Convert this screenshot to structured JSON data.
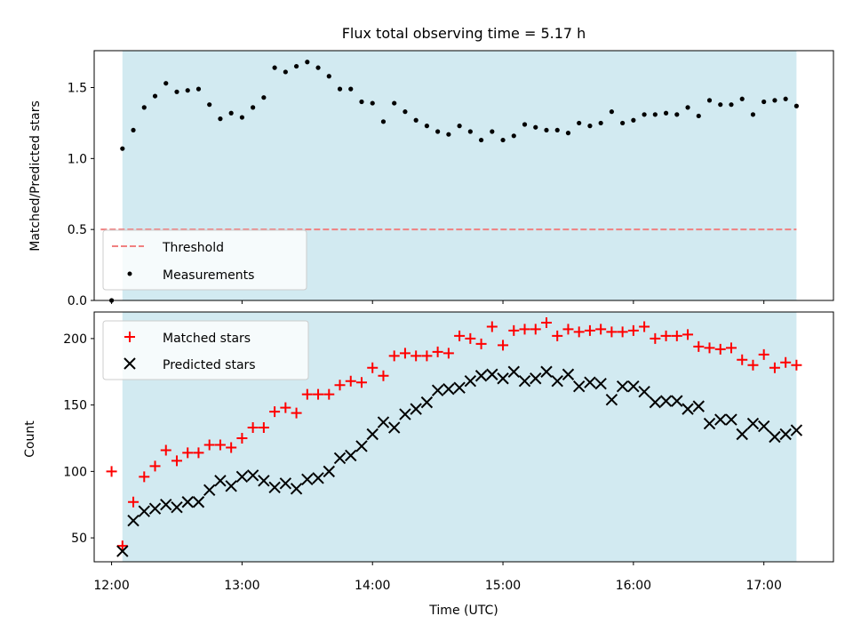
{
  "chart_data": [
    {
      "type": "scatter",
      "title": "Flux total observing time = 5.17 h",
      "ylabel": "Matched/Predicted stars",
      "xlabel": "",
      "xlim": [
        "11:52",
        "17:32"
      ],
      "ylim": [
        0,
        1.76
      ],
      "yticks": [
        0.0,
        0.5,
        1.0,
        1.5
      ],
      "ytick_labels": [
        "0.0",
        "0.5",
        "1.0",
        "1.5"
      ],
      "shaded_span": [
        "12:05",
        "17:15"
      ],
      "shade_color": "#add8e6",
      "threshold": {
        "label": "Threshold",
        "value": 0.5,
        "x_range": [
          "11:55",
          "17:15"
        ],
        "color": "#f08080",
        "style": "dashed"
      },
      "legend": {
        "position": "lower-left",
        "entries": [
          "Threshold",
          "Measurements"
        ]
      },
      "series": [
        {
          "name": "Measurements",
          "color": "#000000",
          "marker": "dot",
          "x": [
            "12:00",
            "12:05",
            "12:10",
            "12:15",
            "12:20",
            "12:25",
            "12:30",
            "12:35",
            "12:40",
            "12:45",
            "12:50",
            "12:55",
            "13:00",
            "13:05",
            "13:10",
            "13:15",
            "13:20",
            "13:25",
            "13:30",
            "13:35",
            "13:40",
            "13:45",
            "13:50",
            "13:55",
            "14:00",
            "14:05",
            "14:10",
            "14:15",
            "14:20",
            "14:25",
            "14:30",
            "14:35",
            "14:40",
            "14:45",
            "14:50",
            "14:55",
            "15:00",
            "15:05",
            "15:10",
            "15:15",
            "15:20",
            "15:25",
            "15:30",
            "15:35",
            "15:40",
            "15:45",
            "15:50",
            "15:55",
            "16:00",
            "16:05",
            "16:10",
            "16:15",
            "16:20",
            "16:25",
            "16:30",
            "16:35",
            "16:40",
            "16:45",
            "16:50",
            "16:55",
            "17:00",
            "17:05",
            "17:10",
            "17:15"
          ],
          "y": [
            0.0,
            1.07,
            1.2,
            1.36,
            1.44,
            1.53,
            1.47,
            1.48,
            1.49,
            1.38,
            1.28,
            1.32,
            1.29,
            1.36,
            1.43,
            1.64,
            1.61,
            1.65,
            1.68,
            1.64,
            1.58,
            1.49,
            1.49,
            1.4,
            1.39,
            1.26,
            1.39,
            1.33,
            1.27,
            1.23,
            1.19,
            1.17,
            1.23,
            1.19,
            1.13,
            1.19,
            1.13,
            1.16,
            1.24,
            1.22,
            1.2,
            1.2,
            1.18,
            1.25,
            1.23,
            1.25,
            1.33,
            1.25,
            1.27,
            1.31,
            1.31,
            1.32,
            1.31,
            1.36,
            1.3,
            1.41,
            1.38,
            1.38,
            1.42,
            1.31,
            1.4,
            1.41,
            1.42,
            1.37
          ]
        }
      ]
    },
    {
      "type": "scatter",
      "xlabel": "Time (UTC)",
      "ylabel": "Count",
      "xlim": [
        "11:52",
        "17:32"
      ],
      "ylim": [
        32,
        220
      ],
      "xticks": [
        "12:00",
        "13:00",
        "14:00",
        "15:00",
        "16:00",
        "17:00"
      ],
      "yticks": [
        50,
        100,
        150,
        200
      ],
      "shaded_span": [
        "12:05",
        "17:15"
      ],
      "shade_color": "#add8e6",
      "legend": {
        "position": "upper-left",
        "entries": [
          "Matched stars",
          "Predicted stars"
        ]
      },
      "series": [
        {
          "name": "Matched stars",
          "color": "#ff0000",
          "marker": "plus",
          "x": [
            "12:00",
            "12:05",
            "12:10",
            "12:15",
            "12:20",
            "12:25",
            "12:30",
            "12:35",
            "12:40",
            "12:45",
            "12:50",
            "12:55",
            "13:00",
            "13:05",
            "13:10",
            "13:15",
            "13:20",
            "13:25",
            "13:30",
            "13:35",
            "13:40",
            "13:45",
            "13:50",
            "13:55",
            "14:00",
            "14:05",
            "14:10",
            "14:15",
            "14:20",
            "14:25",
            "14:30",
            "14:35",
            "14:40",
            "14:45",
            "14:50",
            "14:55",
            "15:00",
            "15:05",
            "15:10",
            "15:15",
            "15:20",
            "15:25",
            "15:30",
            "15:35",
            "15:40",
            "15:45",
            "15:50",
            "15:55",
            "16:00",
            "16:05",
            "16:10",
            "16:15",
            "16:20",
            "16:25",
            "16:30",
            "16:35",
            "16:40",
            "16:45",
            "16:50",
            "16:55",
            "17:00",
            "17:05",
            "17:10",
            "17:15"
          ],
          "y": [
            100,
            44,
            77,
            96,
            104,
            116,
            108,
            114,
            114,
            120,
            120,
            118,
            125,
            133,
            133,
            145,
            148,
            144,
            158,
            158,
            158,
            165,
            168,
            167,
            178,
            172,
            187,
            189,
            187,
            187,
            190,
            189,
            202,
            200,
            196,
            209,
            195,
            206,
            207,
            207,
            212,
            202,
            207,
            205,
            206,
            207,
            205,
            205,
            206,
            209,
            200,
            202,
            202,
            203,
            194,
            193,
            192,
            193,
            184,
            180,
            188,
            178,
            182,
            180
          ]
        },
        {
          "name": "Predicted stars",
          "color": "#000000",
          "marker": "x",
          "x": [
            "12:05",
            "12:10",
            "12:15",
            "12:20",
            "12:25",
            "12:30",
            "12:35",
            "12:40",
            "12:45",
            "12:50",
            "12:55",
            "13:00",
            "13:05",
            "13:10",
            "13:15",
            "13:20",
            "13:25",
            "13:30",
            "13:35",
            "13:40",
            "13:45",
            "13:50",
            "13:55",
            "14:00",
            "14:05",
            "14:10",
            "14:15",
            "14:20",
            "14:25",
            "14:30",
            "14:35",
            "14:40",
            "14:45",
            "14:50",
            "14:55",
            "15:00",
            "15:05",
            "15:10",
            "15:15",
            "15:20",
            "15:25",
            "15:30",
            "15:35",
            "15:40",
            "15:45",
            "15:50",
            "15:55",
            "16:00",
            "16:05",
            "16:10",
            "16:15",
            "16:20",
            "16:25",
            "16:30",
            "16:35",
            "16:40",
            "16:45",
            "16:50",
            "16:55",
            "17:00",
            "17:05",
            "17:10",
            "17:15"
          ],
          "y": [
            40,
            63,
            70,
            72,
            75,
            73,
            77,
            77,
            86,
            93,
            89,
            96,
            97,
            93,
            88,
            91,
            87,
            94,
            95,
            100,
            110,
            112,
            119,
            128,
            137,
            133,
            143,
            147,
            152,
            161,
            162,
            163,
            168,
            172,
            173,
            170,
            175,
            168,
            170,
            175,
            168,
            173,
            164,
            167,
            166,
            154,
            164,
            164,
            160,
            152,
            153,
            153,
            147,
            149,
            136,
            139,
            139,
            128,
            136,
            134,
            126,
            128,
            131
          ]
        }
      ]
    }
  ]
}
